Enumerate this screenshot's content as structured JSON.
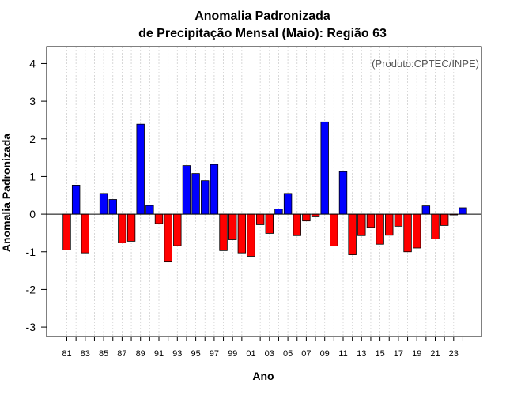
{
  "chart_data": {
    "type": "bar",
    "title_line1": "Anomalia Padronizada",
    "title_line2": "de Precipitação Mensal (Maio): Região 63",
    "xlabel": "Ano",
    "ylabel": "Anomalia Padronizada",
    "credit": "(Produto:CPTEC/INPE)",
    "ylim": [
      -3.25,
      4.45
    ],
    "yticks": [
      -3,
      -2,
      -1,
      0,
      1,
      2,
      3,
      4
    ],
    "grid": "vertical dotted",
    "categories": [
      "81",
      "82",
      "83",
      "84",
      "85",
      "86",
      "87",
      "88",
      "89",
      "90",
      "91",
      "92",
      "93",
      "94",
      "95",
      "96",
      "97",
      "98",
      "99",
      "00",
      "01",
      "02",
      "03",
      "04",
      "05",
      "06",
      "07",
      "08",
      "09",
      "10",
      "11",
      "12",
      "13",
      "14",
      "15",
      "16",
      "17",
      "18",
      "19",
      "20",
      "21",
      "22",
      "23",
      "24"
    ],
    "xtick_labels": [
      "81",
      "83",
      "85",
      "87",
      "89",
      "91",
      "93",
      "95",
      "97",
      "99",
      "01",
      "03",
      "05",
      "07",
      "09",
      "11",
      "13",
      "15",
      "17",
      "19",
      "21",
      "23"
    ],
    "values": [
      -0.95,
      0.77,
      -1.03,
      0.0,
      0.55,
      0.39,
      -0.76,
      -0.72,
      2.39,
      0.23,
      -0.25,
      -1.27,
      -0.84,
      1.29,
      1.08,
      0.89,
      1.32,
      -0.97,
      -0.68,
      -1.03,
      -1.12,
      -0.28,
      -0.51,
      0.14,
      0.55,
      -0.57,
      -0.18,
      -0.07,
      2.45,
      -0.85,
      1.13,
      -1.08,
      -0.57,
      -0.35,
      -0.8,
      -0.56,
      -0.32,
      -1.0,
      -0.9,
      0.22,
      -0.66,
      -0.3,
      -0.02,
      0.17
    ],
    "positive_color": "#0000ff",
    "negative_color": "#ff0000"
  }
}
